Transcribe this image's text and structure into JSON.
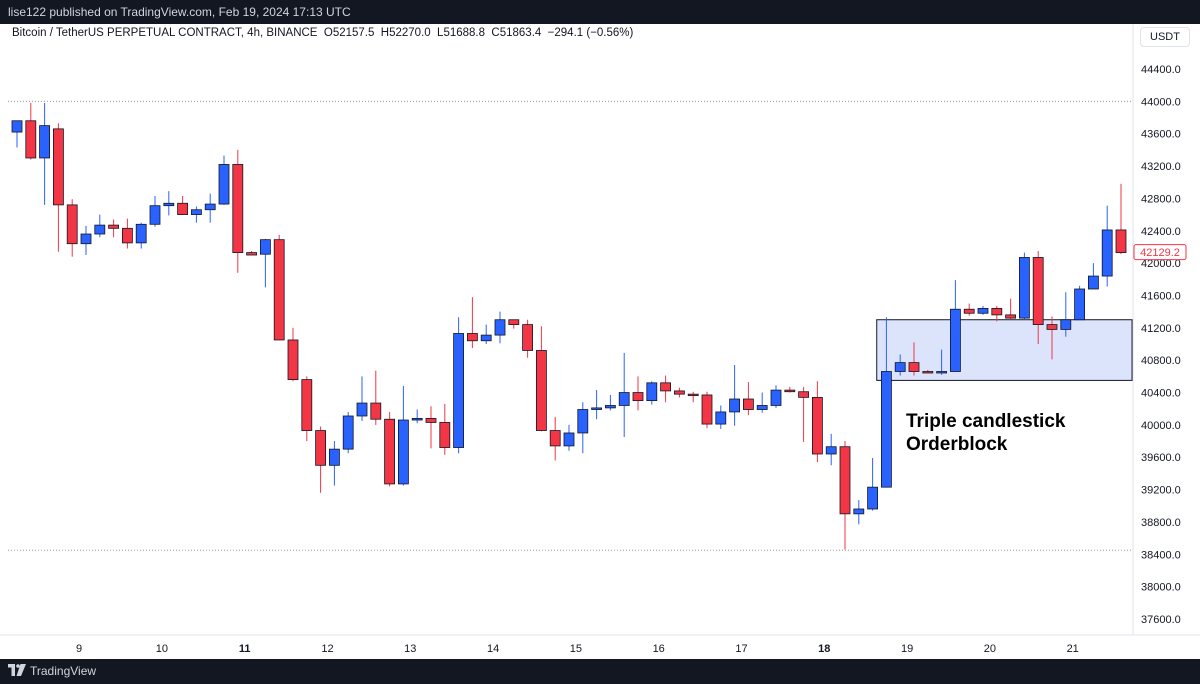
{
  "header": {
    "published": "lise122 published on TradingView.com, Feb 19, 2024 17:13 UTC"
  },
  "legend": {
    "symbol": "Bitcoin / TetherUS PERPETUAL CONTRACT, 4h, BINANCE",
    "open": "O52157.5",
    "high": "H52270.0",
    "low": "L51688.8",
    "close": "C51863.4",
    "change": "−294.1 (−0.56%)"
  },
  "currency": "USDT",
  "last_price": "42129.2",
  "annotation": {
    "line1": "Triple candlestick",
    "line2": "Orderblock"
  },
  "footer": {
    "brand": "TradingView"
  },
  "colors": {
    "up": "#2962ff",
    "down": "#f23645",
    "zone_fill": "#dbe4fb",
    "zone_border": "#131722"
  },
  "chart_data": {
    "type": "candlestick",
    "timeframe": "4h",
    "y_ticks": [
      44400,
      44000,
      43600,
      43200,
      42800,
      42400,
      42000,
      41600,
      41200,
      40800,
      40400,
      40000,
      39600,
      39200,
      38800,
      38400,
      38000,
      37600
    ],
    "ylim": [
      37300,
      44700
    ],
    "x_tick_labels": [
      {
        "label": "9",
        "bold": false,
        "index": 4.5
      },
      {
        "label": "10",
        "bold": false,
        "index": 10.5
      },
      {
        "label": "11",
        "bold": true,
        "index": 16.5
      },
      {
        "label": "12",
        "bold": false,
        "index": 22.5
      },
      {
        "label": "13",
        "bold": false,
        "index": 28.5
      },
      {
        "label": "14",
        "bold": false,
        "index": 34.5
      },
      {
        "label": "15",
        "bold": false,
        "index": 40.5
      },
      {
        "label": "16",
        "bold": false,
        "index": 46.5
      },
      {
        "label": "17",
        "bold": false,
        "index": 52.5
      },
      {
        "label": "18",
        "bold": true,
        "index": 58.5
      },
      {
        "label": "19",
        "bold": false,
        "index": 64.5
      },
      {
        "label": "20",
        "bold": false,
        "index": 70.5
      },
      {
        "label": "21",
        "bold": false,
        "index": 76.5
      }
    ],
    "horizontal_levels": [
      44000,
      38450
    ],
    "orderblock_zone": {
      "from_index": 62.3,
      "to_index": 80.8,
      "top": 41300,
      "bottom": 40550
    },
    "candles": [
      [
        43620,
        43760,
        43430,
        43760
      ],
      [
        43760,
        43980,
        43280,
        43300
      ],
      [
        43300,
        43980,
        42720,
        43700
      ],
      [
        43660,
        43730,
        42140,
        42720
      ],
      [
        42720,
        42790,
        42080,
        42240
      ],
      [
        42240,
        42460,
        42100,
        42360
      ],
      [
        42360,
        42600,
        42320,
        42470
      ],
      [
        42470,
        42540,
        42320,
        42430
      ],
      [
        42430,
        42550,
        42180,
        42250
      ],
      [
        42250,
        42500,
        42180,
        42480
      ],
      [
        42480,
        42830,
        42450,
        42710
      ],
      [
        42710,
        42890,
        42590,
        42740
      ],
      [
        42740,
        42830,
        42600,
        42600
      ],
      [
        42600,
        42700,
        42500,
        42660
      ],
      [
        42660,
        42860,
        42500,
        42730
      ],
      [
        42730,
        43330,
        42720,
        43220
      ],
      [
        43220,
        43400,
        41880,
        42130
      ],
      [
        42130,
        42150,
        42120,
        42100
      ],
      [
        42110,
        42300,
        41700,
        42290
      ],
      [
        42290,
        42350,
        41050,
        41050
      ],
      [
        41050,
        41200,
        40540,
        40560
      ],
      [
        40560,
        40600,
        39800,
        39930
      ],
      [
        39930,
        39980,
        39160,
        39500
      ],
      [
        39500,
        39800,
        39250,
        39700
      ],
      [
        39700,
        40160,
        39650,
        40110
      ],
      [
        40110,
        40600,
        40050,
        40270
      ],
      [
        40270,
        40670,
        40000,
        40070
      ],
      [
        40070,
        40160,
        39240,
        39270
      ],
      [
        39270,
        40480,
        39250,
        40060
      ],
      [
        40060,
        40190,
        40020,
        40080
      ],
      [
        40080,
        40230,
        39710,
        40030
      ],
      [
        40030,
        40260,
        39630,
        39720
      ],
      [
        39720,
        41330,
        39650,
        41130
      ],
      [
        41130,
        41580,
        40950,
        41040
      ],
      [
        41040,
        41240,
        41000,
        41110
      ],
      [
        41110,
        41400,
        41010,
        41300
      ],
      [
        41300,
        41280,
        41190,
        41240
      ],
      [
        41240,
        41300,
        40830,
        40920
      ],
      [
        40920,
        41220,
        39920,
        39930
      ],
      [
        39930,
        40100,
        39560,
        39740
      ],
      [
        39740,
        40000,
        39680,
        39900
      ],
      [
        39900,
        40280,
        39650,
        40190
      ],
      [
        40190,
        40430,
        40070,
        40210
      ],
      [
        40210,
        40370,
        40180,
        40240
      ],
      [
        40240,
        40890,
        39850,
        40400
      ],
      [
        40400,
        40600,
        40180,
        40300
      ],
      [
        40300,
        40540,
        40250,
        40520
      ],
      [
        40520,
        40610,
        40280,
        40420
      ],
      [
        40420,
        40460,
        40340,
        40380
      ],
      [
        40380,
        40410,
        40280,
        40370
      ],
      [
        40370,
        40410,
        39960,
        40010
      ],
      [
        40010,
        40240,
        39950,
        40160
      ],
      [
        40160,
        40740,
        39990,
        40320
      ],
      [
        40320,
        40530,
        40120,
        40190
      ],
      [
        40190,
        40400,
        40150,
        40240
      ],
      [
        40240,
        40490,
        40210,
        40430
      ],
      [
        40430,
        40470,
        40400,
        40410
      ],
      [
        40410,
        40470,
        39790,
        40340
      ],
      [
        40340,
        40540,
        39540,
        39640
      ],
      [
        39640,
        39890,
        39500,
        39730
      ],
      [
        39730,
        39800,
        38460,
        38900
      ],
      [
        38900,
        39070,
        38770,
        38960
      ],
      [
        38960,
        39590,
        38940,
        39230
      ],
      [
        39230,
        41330,
        39240,
        40660
      ],
      [
        40660,
        40870,
        40610,
        40770
      ],
      [
        40770,
        41020,
        40610,
        40660
      ],
      [
        40660,
        40680,
        40640,
        40650
      ],
      [
        40650,
        40930,
        40620,
        40660
      ],
      [
        40660,
        41790,
        40660,
        41430
      ],
      [
        41430,
        41500,
        41350,
        41380
      ],
      [
        41380,
        41470,
        41360,
        41440
      ],
      [
        41440,
        41470,
        41280,
        41360
      ],
      [
        41360,
        41560,
        41300,
        41320
      ],
      [
        41320,
        42130,
        41300,
        42070
      ],
      [
        42070,
        42150,
        41000,
        41240
      ],
      [
        41240,
        41340,
        40810,
        41180
      ],
      [
        41180,
        41640,
        41090,
        41300
      ],
      [
        41300,
        41720,
        41310,
        41680
      ],
      [
        41680,
        42000,
        41680,
        41840
      ],
      [
        41840,
        42710,
        41710,
        42410
      ],
      [
        42410,
        42980,
        42110,
        42130
      ]
    ]
  }
}
